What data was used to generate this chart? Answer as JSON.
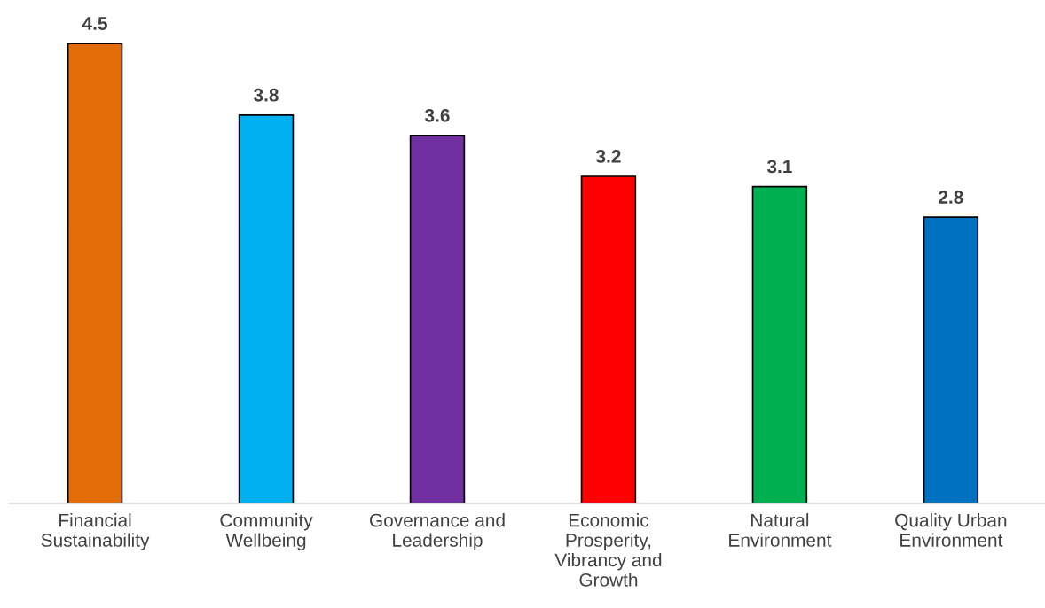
{
  "chart_data": {
    "type": "bar",
    "categories": [
      "Financial\nSustainability",
      "Community\nWellbeing",
      "Governance and\nLeadership",
      "Economic\nProsperity,\nVibrancy and\nGrowth",
      "Natural\nEnvironment",
      "Quality Urban\nEnvironment"
    ],
    "values": [
      4.5,
      3.8,
      3.6,
      3.2,
      3.1,
      2.8
    ],
    "colors": [
      "#e36c09",
      "#00b0f0",
      "#7030a0",
      "#ff0000",
      "#00b050",
      "#0070c0"
    ],
    "data_labels": true
  }
}
